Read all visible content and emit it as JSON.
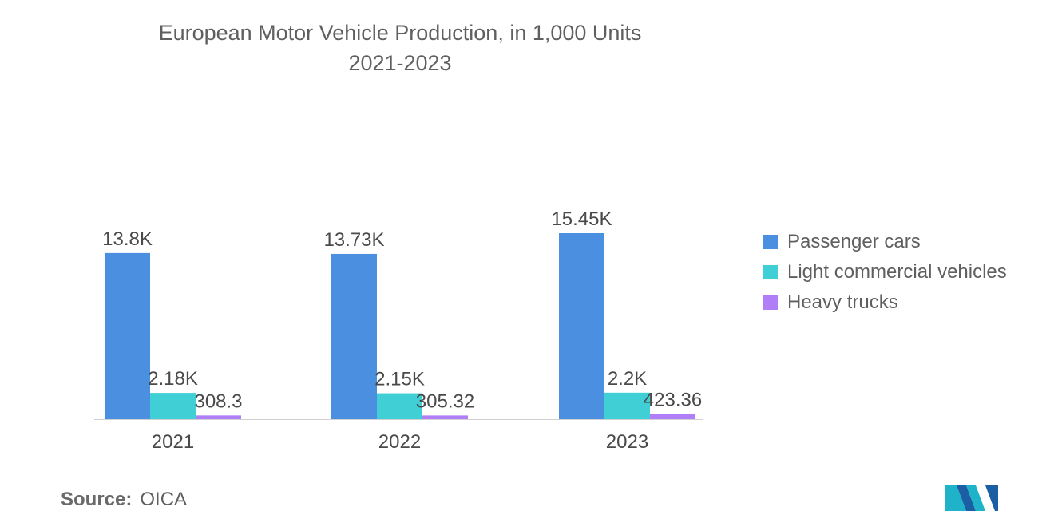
{
  "title": "European Motor Vehicle Production, in 1,000 Units",
  "subtitle": "2021-2023",
  "source": {
    "label": "Source:",
    "value": "OICA"
  },
  "chart_data": {
    "type": "bar",
    "title": "European Motor Vehicle Production, in 1,000 Units",
    "subtitle": "2021-2023",
    "categories": [
      "2021",
      "2022",
      "2023"
    ],
    "series": [
      {
        "name": "Passenger cars",
        "color": "#4a8fe0",
        "values": [
          13800,
          13730,
          15450
        ],
        "labels": [
          "13.8K",
          "13.73K",
          "15.45K"
        ]
      },
      {
        "name": "Light commercial vehicles",
        "color": "#40cfd4",
        "values": [
          2180,
          2150,
          2200
        ],
        "labels": [
          "2.18K",
          "2.15K",
          "2.2K"
        ]
      },
      {
        "name": "Heavy trucks",
        "color": "#b07ef7",
        "values": [
          308.3,
          305.32,
          423.36
        ],
        "labels": [
          "308.3",
          "305.32",
          "423.36"
        ]
      }
    ],
    "xlabel": "",
    "ylabel": "",
    "ylim": [
      0,
      15450
    ],
    "grid": false,
    "legend": "right",
    "baseline_color": "#d0d0d0"
  }
}
